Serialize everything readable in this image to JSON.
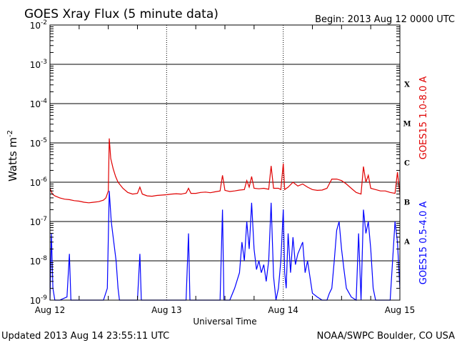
{
  "header": {
    "title": "GOES Xray Flux (5 minute data)",
    "begin": "Begin:  2013 Aug 12 0000 UTC"
  },
  "footer": {
    "updated": "Updated 2013 Aug 14 23:55:11 UTC",
    "credit": "NOAA/SWPC Boulder, CO USA"
  },
  "colors": {
    "long_channel": "#e00000",
    "short_channel": "#0000ff",
    "axes": "#000000",
    "background": "#ffffff"
  },
  "chart_data": {
    "type": "line",
    "title": "GOES Xray Flux (5 minute data)",
    "xlabel": "Universal Time",
    "ylabel": "Watts m",
    "ylabel_superscript": "-2",
    "yscale": "log",
    "ylim": [
      1e-09,
      0.01
    ],
    "xlim": [
      0,
      72
    ],
    "x_unit": "hours since 2013 Aug 12 0000 UTC",
    "x_ticks": [
      {
        "x": 0,
        "label": "Aug 12"
      },
      {
        "x": 24,
        "label": "Aug 13"
      },
      {
        "x": 48,
        "label": "Aug 14"
      },
      {
        "x": 72,
        "label": "Aug 15"
      }
    ],
    "y_ticks": [
      {
        "exp": -2,
        "label": "10",
        "sup": "-2"
      },
      {
        "exp": -3,
        "label": "10",
        "sup": "-3"
      },
      {
        "exp": -4,
        "label": "10",
        "sup": "-4"
      },
      {
        "exp": -5,
        "label": "10",
        "sup": "-5"
      },
      {
        "exp": -6,
        "label": "10",
        "sup": "-6"
      },
      {
        "exp": -7,
        "label": "10",
        "sup": "-7"
      },
      {
        "exp": -8,
        "label": "10",
        "sup": "-8"
      },
      {
        "exp": -9,
        "label": "10",
        "sup": "-9"
      }
    ],
    "flare_classes": [
      {
        "label": "X",
        "exp": -3.5
      },
      {
        "label": "M",
        "exp": -4.5
      },
      {
        "label": "C",
        "exp": -5.5
      },
      {
        "label": "B",
        "exp": -6.5
      },
      {
        "label": "A",
        "exp": -7.5
      }
    ],
    "grid": true,
    "series": [
      {
        "name": "GOES15 1.0-8.0 A",
        "color": "#e00000",
        "points": [
          [
            0,
            7e-07
          ],
          [
            0.5,
            5e-07
          ],
          [
            1,
            4.5e-07
          ],
          [
            2,
            4e-07
          ],
          [
            3,
            3.7e-07
          ],
          [
            4,
            3.6e-07
          ],
          [
            5,
            3.4e-07
          ],
          [
            6,
            3.3e-07
          ],
          [
            7,
            3.1e-07
          ],
          [
            8,
            3e-07
          ],
          [
            9,
            3.1e-07
          ],
          [
            10,
            3.2e-07
          ],
          [
            11,
            3.5e-07
          ],
          [
            11.5,
            4e-07
          ],
          [
            12,
            6e-07
          ],
          [
            12.2,
            1.3e-05
          ],
          [
            12.5,
            4e-06
          ],
          [
            13,
            2.2e-06
          ],
          [
            13.5,
            1.4e-06
          ],
          [
            14,
            1e-06
          ],
          [
            15,
            7e-07
          ],
          [
            16,
            5.5e-07
          ],
          [
            17,
            5e-07
          ],
          [
            18,
            5.2e-07
          ],
          [
            18.5,
            7.5e-07
          ],
          [
            19,
            5e-07
          ],
          [
            20,
            4.5e-07
          ],
          [
            21,
            4.4e-07
          ],
          [
            22,
            4.6e-07
          ],
          [
            23,
            4.7e-07
          ],
          [
            24,
            4.8e-07
          ],
          [
            25,
            5e-07
          ],
          [
            26,
            5.1e-07
          ],
          [
            27,
            5e-07
          ],
          [
            28,
            5.3e-07
          ],
          [
            28.5,
            7e-07
          ],
          [
            29,
            5.2e-07
          ],
          [
            30,
            5.2e-07
          ],
          [
            31,
            5.5e-07
          ],
          [
            32,
            5.6e-07
          ],
          [
            33,
            5.4e-07
          ],
          [
            34,
            5.7e-07
          ],
          [
            35,
            6e-07
          ],
          [
            35.5,
            1.5e-06
          ],
          [
            36,
            6.2e-07
          ],
          [
            37,
            5.8e-07
          ],
          [
            38,
            6e-07
          ],
          [
            39,
            6.3e-07
          ],
          [
            40,
            6.5e-07
          ],
          [
            40.5,
            1.1e-06
          ],
          [
            41,
            7.5e-07
          ],
          [
            41.5,
            1.4e-06
          ],
          [
            42,
            7e-07
          ],
          [
            43,
            6.8e-07
          ],
          [
            44,
            7e-07
          ],
          [
            45,
            6.6e-07
          ],
          [
            45.5,
            2.6e-06
          ],
          [
            46,
            7e-07
          ],
          [
            47,
            7e-07
          ],
          [
            47.5,
            6.5e-07
          ],
          [
            48,
            3e-06
          ],
          [
            48.3,
            6.5e-07
          ],
          [
            49,
            7.5e-07
          ],
          [
            50,
            1e-06
          ],
          [
            51,
            8e-07
          ],
          [
            52,
            9e-07
          ],
          [
            53,
            7.5e-07
          ],
          [
            54,
            6.5e-07
          ],
          [
            55,
            6.2e-07
          ],
          [
            56,
            6.3e-07
          ],
          [
            57,
            7e-07
          ],
          [
            58,
            1.2e-06
          ],
          [
            59,
            1.2e-06
          ],
          [
            60,
            1.1e-06
          ],
          [
            61,
            9e-07
          ],
          [
            62,
            7e-07
          ],
          [
            63,
            5.5e-07
          ],
          [
            64,
            5e-07
          ],
          [
            64.5,
            2.5e-06
          ],
          [
            65,
            1e-06
          ],
          [
            65.5,
            1.5e-06
          ],
          [
            66,
            7e-07
          ],
          [
            67,
            6.5e-07
          ],
          [
            68,
            6e-07
          ],
          [
            69,
            6e-07
          ],
          [
            70,
            5.5e-07
          ],
          [
            71,
            5.2e-07
          ],
          [
            71.5,
            1.8e-06
          ],
          [
            72,
            5e-07
          ]
        ]
      },
      {
        "name": "GOES15 0.5-4.0 A",
        "color": "#0000ff",
        "points": [
          [
            0,
            1e-09
          ],
          [
            0.3,
            5e-08
          ],
          [
            0.6,
            2e-09
          ],
          [
            1,
            1e-09
          ],
          [
            2,
            1e-09
          ],
          [
            3.5,
            1.2e-09
          ],
          [
            4,
            1.5e-08
          ],
          [
            4.3,
            1e-09
          ],
          [
            5,
            1e-09
          ],
          [
            6,
            1e-09
          ],
          [
            7,
            1e-09
          ],
          [
            8,
            1e-09
          ],
          [
            9,
            1e-09
          ],
          [
            10,
            1e-09
          ],
          [
            11,
            1e-09
          ],
          [
            11.8,
            2e-09
          ],
          [
            12,
            4e-08
          ],
          [
            12.2,
            6e-07
          ],
          [
            12.6,
            1e-07
          ],
          [
            13,
            4e-08
          ],
          [
            13.6,
            1e-08
          ],
          [
            14,
            2e-09
          ],
          [
            14.3,
            1e-09
          ],
          [
            15,
            1e-09
          ],
          [
            16,
            1e-09
          ],
          [
            17,
            1e-09
          ],
          [
            18,
            1e-09
          ],
          [
            18.5,
            1.5e-08
          ],
          [
            18.8,
            1e-09
          ],
          [
            19,
            1e-09
          ],
          [
            20,
            1e-09
          ],
          [
            21,
            1e-09
          ],
          [
            22,
            1e-09
          ],
          [
            23,
            1e-09
          ],
          [
            24,
            1e-09
          ],
          [
            25,
            1e-09
          ],
          [
            26,
            1e-09
          ],
          [
            27,
            1e-09
          ],
          [
            28,
            1e-09
          ],
          [
            28.5,
            5e-08
          ],
          [
            28.8,
            1e-09
          ],
          [
            29,
            1e-09
          ],
          [
            30,
            1e-09
          ],
          [
            31,
            1e-09
          ],
          [
            32,
            1e-09
          ],
          [
            33,
            1e-09
          ],
          [
            34,
            1e-09
          ],
          [
            35,
            1e-09
          ],
          [
            35.5,
            2e-07
          ],
          [
            35.8,
            1e-09
          ],
          [
            36,
            1e-09
          ],
          [
            37,
            1e-09
          ],
          [
            38,
            2e-09
          ],
          [
            39,
            5e-09
          ],
          [
            39.5,
            3e-08
          ],
          [
            40,
            1e-08
          ],
          [
            40.5,
            1e-07
          ],
          [
            41,
            2e-08
          ],
          [
            41.5,
            3e-07
          ],
          [
            42,
            2e-08
          ],
          [
            42.5,
            6e-09
          ],
          [
            43,
            1e-08
          ],
          [
            43.5,
            5e-09
          ],
          [
            44,
            8e-09
          ],
          [
            44.5,
            3e-09
          ],
          [
            45,
            1e-08
          ],
          [
            45.5,
            3e-07
          ],
          [
            46,
            4e-09
          ],
          [
            46.5,
            1e-09
          ],
          [
            47,
            2e-09
          ],
          [
            47.5,
            1e-08
          ],
          [
            48,
            2e-07
          ],
          [
            48.3,
            5e-09
          ],
          [
            48.6,
            2e-09
          ],
          [
            49,
            5e-08
          ],
          [
            49.5,
            5e-09
          ],
          [
            50,
            4e-08
          ],
          [
            50.5,
            8e-09
          ],
          [
            51,
            1.5e-08
          ],
          [
            52,
            3e-08
          ],
          [
            52.5,
            5e-09
          ],
          [
            53,
            1e-08
          ],
          [
            54,
            1.5e-09
          ],
          [
            55,
            1.2e-09
          ],
          [
            56,
            1e-09
          ],
          [
            57,
            1e-09
          ],
          [
            57.5,
            1.5e-09
          ],
          [
            58,
            2e-09
          ],
          [
            58.5,
            1e-08
          ],
          [
            59,
            6e-08
          ],
          [
            59.5,
            1e-07
          ],
          [
            60,
            2e-08
          ],
          [
            60.5,
            6e-09
          ],
          [
            61,
            2e-09
          ],
          [
            62,
            1.2e-09
          ],
          [
            63,
            1e-09
          ],
          [
            63.5,
            5e-08
          ],
          [
            64,
            1e-09
          ],
          [
            64.5,
            2e-07
          ],
          [
            65,
            5e-08
          ],
          [
            65.5,
            1e-07
          ],
          [
            66,
            2e-08
          ],
          [
            66.5,
            2e-09
          ],
          [
            67,
            1e-09
          ],
          [
            68,
            1e-09
          ],
          [
            69,
            1e-09
          ],
          [
            70,
            1e-09
          ],
          [
            71,
            1e-07
          ],
          [
            71.5,
            3e-08
          ],
          [
            72,
            2e-09
          ]
        ]
      }
    ],
    "legend": "right-side vertical labels"
  }
}
